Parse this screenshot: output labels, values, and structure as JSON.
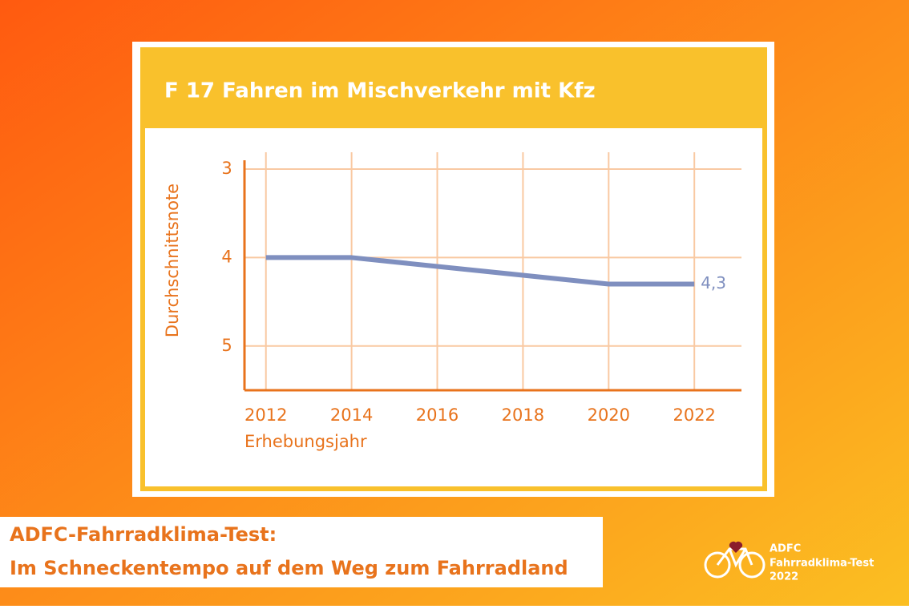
{
  "chart_data": {
    "type": "line",
    "title": "F 17 Fahren im Mischverkehr mit Kfz",
    "y_label": "Durchschnittsnote",
    "x_label": "Erhebungsjahr",
    "x": [
      2012,
      2014,
      2016,
      2018,
      2020,
      2022
    ],
    "values": [
      4.0,
      4.0,
      4.1,
      4.2,
      4.3,
      4.3
    ],
    "value_labels": [
      null,
      null,
      null,
      null,
      null,
      "4,3"
    ],
    "color": "#7f8fbf",
    "xlim": [
      2011.5,
      2023.1
    ],
    "xticks": [
      2012,
      2014,
      2016,
      2018,
      2020,
      2022
    ],
    "ylim": [
      5.5,
      2.9
    ],
    "yticks": [
      3,
      4,
      5
    ],
    "grid": true
  },
  "banner": {
    "caption": [
      "ADFC-Fahrradklima-Test:",
      "Im Schneckentempo auf dem Weg zum Fahrradland"
    ],
    "logo": [
      "ADFC",
      "Fahrradklima-Test",
      "2022"
    ]
  }
}
